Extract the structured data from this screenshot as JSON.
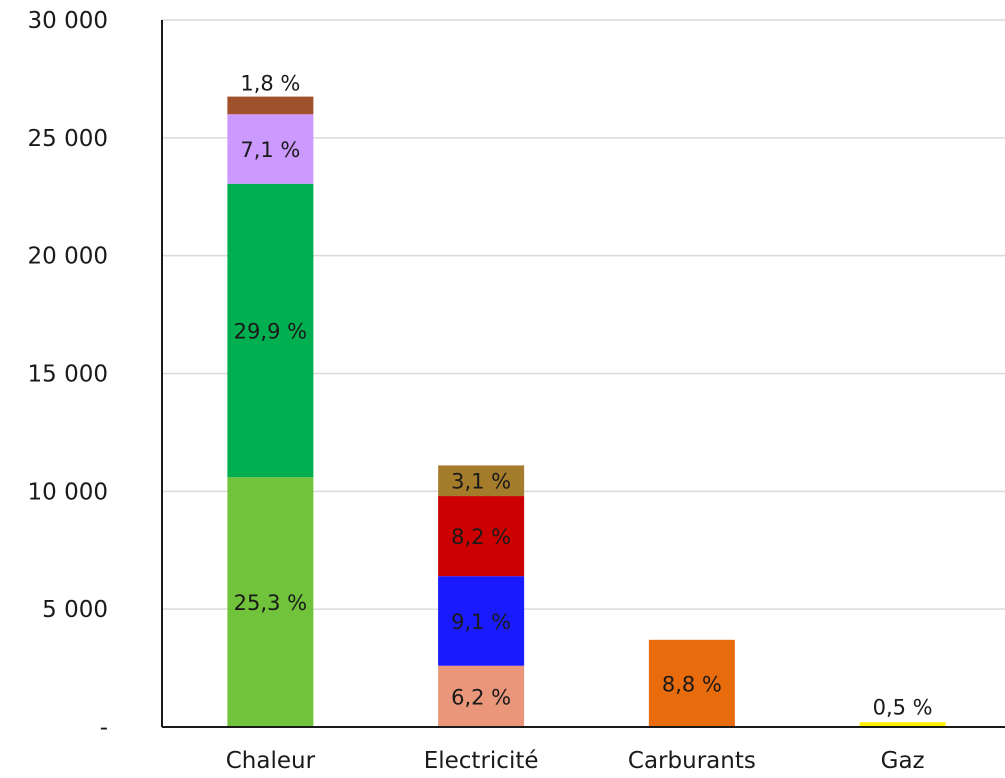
{
  "chart_data": {
    "type": "bar",
    "stacked": true,
    "title": "",
    "xlabel": "",
    "ylabel": "",
    "ylim": [
      0,
      30000
    ],
    "yticks": [
      0,
      5000,
      10000,
      15000,
      20000,
      25000,
      30000
    ],
    "ytick_labels": [
      "-",
      "5 000",
      "10 000",
      "15 000",
      "20 000",
      "25 000",
      "30 000"
    ],
    "grid": "horizontal",
    "legend": "none",
    "categories": [
      "Chaleur",
      "Electricité",
      "Carburants",
      "Gaz"
    ],
    "stacks": [
      {
        "category": "Chaleur",
        "segments": [
          {
            "value": 10600,
            "label": "25,3 %",
            "color": "#70c33a"
          },
          {
            "value": 12450,
            "label": "29,9 %",
            "color": "#00b050"
          },
          {
            "value": 2950,
            "label": "7,1 %",
            "color": "#cc99ff"
          },
          {
            "value": 750,
            "label": "1,8 %",
            "color": "#a0522d"
          }
        ]
      },
      {
        "category": "Electricité",
        "segments": [
          {
            "value": 2600,
            "label": "6,2 %",
            "color": "#e9967a"
          },
          {
            "value": 3800,
            "label": "9,1 %",
            "color": "#1a1aff"
          },
          {
            "value": 3400,
            "label": "8,2 %",
            "color": "#cc0000"
          },
          {
            "value": 1300,
            "label": "3,1 %",
            "color": "#a57c2c"
          }
        ]
      },
      {
        "category": "Carburants",
        "segments": [
          {
            "value": 3700,
            "label": "8,8 %",
            "color": "#e86c0c"
          }
        ]
      },
      {
        "category": "Gaz",
        "segments": [
          {
            "value": 200,
            "label": "0,5 %",
            "color": "#ffee00"
          }
        ]
      }
    ]
  }
}
